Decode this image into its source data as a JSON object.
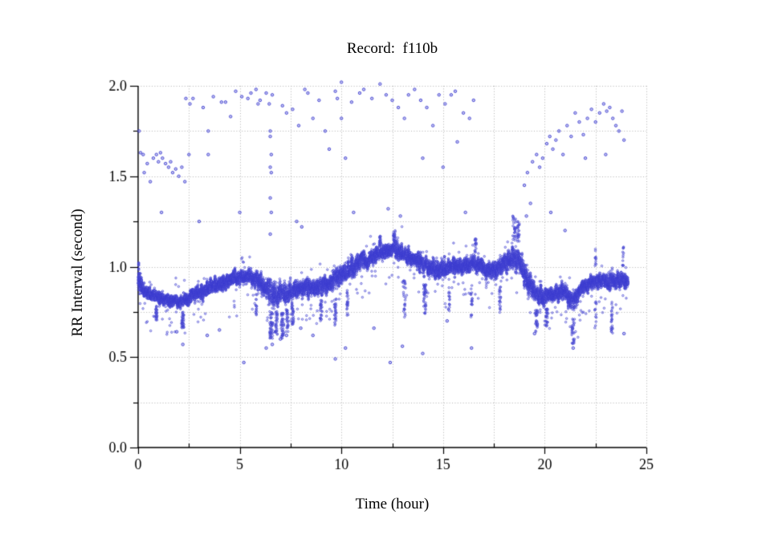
{
  "chart_data": {
    "type": "scatter",
    "title": "Record:  f110b",
    "xlabel": "Time (hour)",
    "ylabel": "RR Interval (second)",
    "xlim": [
      0,
      25
    ],
    "ylim": [
      0.0,
      2.0
    ],
    "x_tick_values": [
      0,
      5,
      10,
      15,
      20,
      25
    ],
    "x_tick_labels": [
      "0",
      "5",
      "10",
      "15",
      "20",
      "25"
    ],
    "x_minor_step": 2.5,
    "y_tick_values": [
      0.0,
      0.5,
      1.0,
      1.5,
      2.0
    ],
    "y_tick_labels": [
      "0.0",
      "0.5",
      "1.0",
      "1.5",
      "2.0"
    ],
    "y_minor_step": 0.25,
    "grid_style": "dotted",
    "grid_color": "#b3b3b3",
    "axis_color": "#000000",
    "background": "#ffffff",
    "point_color": "#3b3bd0",
    "point_fill": "#8a8ae0",
    "data_hours_range": [
      0,
      24.1
    ],
    "n_points_rendered": 15000,
    "seed": 7,
    "band_profile": [
      [
        0.0,
        0.93,
        0.13
      ],
      [
        0.3,
        0.87,
        0.07
      ],
      [
        0.8,
        0.84,
        0.06
      ],
      [
        1.5,
        0.82,
        0.06
      ],
      [
        2.0,
        0.8,
        0.06
      ],
      [
        2.5,
        0.83,
        0.07
      ],
      [
        3.0,
        0.86,
        0.07
      ],
      [
        3.5,
        0.88,
        0.07
      ],
      [
        4.0,
        0.91,
        0.07
      ],
      [
        4.5,
        0.93,
        0.07
      ],
      [
        5.0,
        0.94,
        0.07
      ],
      [
        5.5,
        0.95,
        0.07
      ],
      [
        6.0,
        0.92,
        0.09
      ],
      [
        6.5,
        0.85,
        0.12
      ],
      [
        7.0,
        0.84,
        0.11
      ],
      [
        7.5,
        0.86,
        0.09
      ],
      [
        8.0,
        0.88,
        0.08
      ],
      [
        8.5,
        0.89,
        0.08
      ],
      [
        9.0,
        0.89,
        0.09
      ],
      [
        9.5,
        0.91,
        0.08
      ],
      [
        10.0,
        0.96,
        0.09
      ],
      [
        10.5,
        1.0,
        0.09
      ],
      [
        11.0,
        1.03,
        0.08
      ],
      [
        11.5,
        1.05,
        0.08
      ],
      [
        12.0,
        1.08,
        0.07
      ],
      [
        12.5,
        1.1,
        0.07
      ],
      [
        13.0,
        1.07,
        0.08
      ],
      [
        13.5,
        1.05,
        0.08
      ],
      [
        14.0,
        1.02,
        0.09
      ],
      [
        14.5,
        0.99,
        0.09
      ],
      [
        15.0,
        0.98,
        0.08
      ],
      [
        15.5,
        1.0,
        0.08
      ],
      [
        16.0,
        1.0,
        0.08
      ],
      [
        16.5,
        1.02,
        0.08
      ],
      [
        17.0,
        0.99,
        0.09
      ],
      [
        17.5,
        0.97,
        0.09
      ],
      [
        18.0,
        1.0,
        0.1
      ],
      [
        18.5,
        1.06,
        0.11
      ],
      [
        18.8,
        1.03,
        0.13
      ],
      [
        19.2,
        0.92,
        0.1
      ],
      [
        19.6,
        0.85,
        0.09
      ],
      [
        20.0,
        0.83,
        0.08
      ],
      [
        20.5,
        0.85,
        0.08
      ],
      [
        21.0,
        0.86,
        0.08
      ],
      [
        21.4,
        0.8,
        0.1
      ],
      [
        21.8,
        0.88,
        0.07
      ],
      [
        22.2,
        0.91,
        0.07
      ],
      [
        22.7,
        0.92,
        0.07
      ],
      [
        23.2,
        0.92,
        0.08
      ],
      [
        23.7,
        0.92,
        0.08
      ],
      [
        24.1,
        0.92,
        0.07
      ]
    ],
    "dip_events": [
      [
        0.9,
        0.7,
        0.04
      ],
      [
        2.2,
        0.66,
        0.06
      ],
      [
        5.8,
        0.72,
        0.04
      ],
      [
        6.55,
        0.6,
        0.08
      ],
      [
        6.8,
        0.62,
        0.06
      ],
      [
        7.1,
        0.6,
        0.07
      ],
      [
        7.35,
        0.64,
        0.05
      ],
      [
        7.6,
        0.68,
        0.05
      ],
      [
        9.0,
        0.7,
        0.05
      ],
      [
        9.7,
        0.66,
        0.05
      ],
      [
        10.3,
        0.72,
        0.04
      ],
      [
        13.1,
        0.72,
        0.06
      ],
      [
        14.1,
        0.74,
        0.06
      ],
      [
        15.3,
        0.74,
        0.04
      ],
      [
        16.4,
        0.72,
        0.04
      ],
      [
        17.8,
        0.74,
        0.04
      ],
      [
        19.6,
        0.64,
        0.06
      ],
      [
        20.1,
        0.67,
        0.05
      ],
      [
        21.4,
        0.57,
        0.07
      ],
      [
        22.5,
        0.66,
        0.04
      ],
      [
        23.3,
        0.63,
        0.04
      ]
    ],
    "surge_events": [
      [
        11.9,
        1.17,
        0.04
      ],
      [
        12.6,
        1.2,
        0.05
      ],
      [
        16.6,
        1.16,
        0.04
      ],
      [
        18.5,
        1.28,
        0.08
      ],
      [
        18.7,
        1.25,
        0.05
      ],
      [
        22.5,
        1.1,
        0.03
      ],
      [
        23.85,
        1.12,
        0.03
      ]
    ],
    "outliers_high": [
      [
        0.05,
        1.75
      ],
      [
        0.12,
        1.63
      ],
      [
        0.25,
        1.62
      ],
      [
        0.3,
        1.52
      ],
      [
        0.45,
        1.57
      ],
      [
        0.6,
        1.47
      ],
      [
        0.75,
        1.6
      ],
      [
        0.9,
        1.62
      ],
      [
        1.0,
        1.58
      ],
      [
        1.1,
        1.63
      ],
      [
        1.15,
        1.3
      ],
      [
        1.2,
        1.6
      ],
      [
        1.35,
        1.57
      ],
      [
        1.5,
        1.55
      ],
      [
        1.6,
        1.58
      ],
      [
        1.7,
        1.52
      ],
      [
        1.85,
        1.54
      ],
      [
        2.0,
        1.5
      ],
      [
        2.15,
        1.55
      ],
      [
        2.3,
        1.47
      ],
      [
        2.5,
        1.62
      ],
      [
        2.35,
        1.93
      ],
      [
        2.55,
        1.9
      ],
      [
        2.7,
        1.93
      ],
      [
        3.0,
        1.25
      ],
      [
        3.2,
        1.88
      ],
      [
        3.45,
        1.75
      ],
      [
        3.45,
        1.62
      ],
      [
        3.7,
        1.94
      ],
      [
        4.1,
        1.91
      ],
      [
        4.3,
        1.91
      ],
      [
        4.55,
        1.83
      ],
      [
        4.8,
        1.97
      ],
      [
        5.0,
        1.3
      ],
      [
        5.1,
        1.94
      ],
      [
        5.4,
        1.93
      ],
      [
        5.55,
        1.96
      ],
      [
        5.8,
        1.98
      ],
      [
        5.9,
        1.9
      ],
      [
        6.0,
        1.92
      ],
      [
        6.3,
        1.96
      ],
      [
        6.6,
        1.95
      ],
      [
        6.45,
        1.9
      ],
      [
        6.5,
        1.75
      ],
      [
        6.5,
        1.72
      ],
      [
        6.55,
        1.62
      ],
      [
        6.5,
        1.55
      ],
      [
        6.55,
        1.52
      ],
      [
        6.5,
        1.38
      ],
      [
        6.55,
        1.3
      ],
      [
        6.5,
        1.18
      ],
      [
        7.1,
        1.89
      ],
      [
        7.3,
        1.85
      ],
      [
        7.6,
        1.87
      ],
      [
        7.8,
        1.25
      ],
      [
        7.9,
        1.78
      ],
      [
        8.05,
        1.22
      ],
      [
        8.2,
        1.98
      ],
      [
        8.35,
        1.96
      ],
      [
        8.6,
        1.82
      ],
      [
        8.9,
        1.92
      ],
      [
        9.2,
        1.75
      ],
      [
        9.4,
        1.65
      ],
      [
        9.7,
        1.97
      ],
      [
        9.8,
        1.93
      ],
      [
        10.0,
        2.02
      ],
      [
        10.0,
        1.82
      ],
      [
        10.2,
        1.6
      ],
      [
        10.5,
        1.91
      ],
      [
        10.6,
        1.3
      ],
      [
        10.9,
        1.96
      ],
      [
        11.1,
        1.98
      ],
      [
        11.5,
        1.93
      ],
      [
        11.9,
        2.01
      ],
      [
        12.2,
        1.95
      ],
      [
        12.3,
        1.32
      ],
      [
        12.5,
        1.92
      ],
      [
        12.8,
        1.88
      ],
      [
        12.9,
        1.28
      ],
      [
        13.1,
        1.82
      ],
      [
        13.3,
        1.95
      ],
      [
        13.6,
        1.98
      ],
      [
        13.9,
        1.92
      ],
      [
        14.0,
        1.6
      ],
      [
        14.2,
        1.88
      ],
      [
        14.5,
        1.78
      ],
      [
        14.8,
        1.95
      ],
      [
        15.0,
        1.55
      ],
      [
        15.1,
        1.9
      ],
      [
        15.4,
        1.95
      ],
      [
        15.6,
        1.97
      ],
      [
        15.7,
        1.69
      ],
      [
        16.0,
        1.85
      ],
      [
        16.1,
        1.3
      ],
      [
        16.3,
        1.82
      ],
      [
        16.5,
        1.92
      ],
      [
        19.0,
        1.45
      ],
      [
        19.1,
        1.28
      ],
      [
        19.15,
        1.52
      ],
      [
        19.3,
        1.35
      ],
      [
        19.4,
        1.58
      ],
      [
        19.6,
        1.62
      ],
      [
        19.75,
        1.55
      ],
      [
        19.9,
        1.6
      ],
      [
        20.1,
        1.68
      ],
      [
        20.25,
        1.72
      ],
      [
        20.3,
        1.3
      ],
      [
        20.4,
        1.65
      ],
      [
        20.55,
        1.7
      ],
      [
        20.7,
        1.75
      ],
      [
        20.9,
        1.62
      ],
      [
        21.0,
        1.2
      ],
      [
        21.1,
        1.78
      ],
      [
        21.3,
        1.72
      ],
      [
        21.5,
        1.85
      ],
      [
        21.7,
        1.8
      ],
      [
        21.9,
        1.73
      ],
      [
        22.0,
        1.6
      ],
      [
        22.1,
        1.82
      ],
      [
        22.3,
        1.87
      ],
      [
        22.5,
        1.8
      ],
      [
        22.7,
        1.85
      ],
      [
        22.9,
        1.9
      ],
      [
        23.0,
        1.62
      ],
      [
        23.05,
        1.86
      ],
      [
        23.2,
        1.88
      ],
      [
        23.35,
        1.82
      ],
      [
        23.5,
        1.78
      ],
      [
        23.65,
        1.75
      ],
      [
        23.8,
        1.86
      ],
      [
        23.9,
        1.7
      ]
    ],
    "outliers_low": [
      [
        1.9,
        0.64
      ],
      [
        2.2,
        0.57
      ],
      [
        3.4,
        0.62
      ],
      [
        4.0,
        0.65
      ],
      [
        5.2,
        0.47
      ],
      [
        6.3,
        0.55
      ],
      [
        6.6,
        0.57
      ],
      [
        7.0,
        0.6
      ],
      [
        7.3,
        0.62
      ],
      [
        8.0,
        0.66
      ],
      [
        8.6,
        0.62
      ],
      [
        9.7,
        0.49
      ],
      [
        10.2,
        0.55
      ],
      [
        11.6,
        0.66
      ],
      [
        12.4,
        0.47
      ],
      [
        13.0,
        0.56
      ],
      [
        14.0,
        0.52
      ],
      [
        15.2,
        0.7
      ],
      [
        16.4,
        0.55
      ],
      [
        19.5,
        0.63
      ],
      [
        21.4,
        0.55
      ],
      [
        23.9,
        0.63
      ]
    ]
  }
}
